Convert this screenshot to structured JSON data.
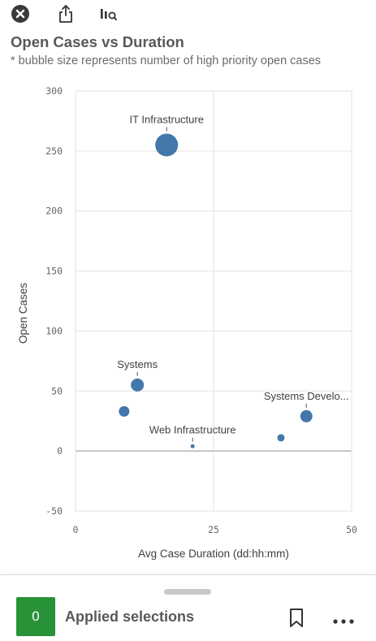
{
  "toolbar": {
    "close_icon": "close-circle-icon",
    "share_icon": "share-export-icon",
    "explore_icon": "visual-exploration-icon"
  },
  "header": {
    "title": "Open Cases vs Duration",
    "subtitle": "* bubble size represents number of high priority open cases"
  },
  "chart_data": {
    "type": "scatter",
    "title": "Open Cases vs Duration",
    "subtitle": "* bubble size represents number of high priority open cases",
    "xlabel": "Avg Case Duration (dd:hh:mm)",
    "ylabel": "Open Cases",
    "xlim": [
      0,
      50
    ],
    "ylim": [
      -50,
      300
    ],
    "x_ticks": [
      0,
      25,
      50
    ],
    "y_ticks": [
      -50,
      0,
      50,
      100,
      150,
      200,
      250,
      300
    ],
    "grid": true,
    "bubble_color": "#4477aa",
    "points": [
      {
        "label": "IT Infrastructure",
        "x": 16.5,
        "y": 255,
        "size": 14
      },
      {
        "label": "Systems",
        "x": 11.2,
        "y": 55,
        "size": 8
      },
      {
        "label": "",
        "x": 8.8,
        "y": 33,
        "size": 6.5
      },
      {
        "label": "Web Infrastructure",
        "x": 21.2,
        "y": 4,
        "size": 2.5
      },
      {
        "label": "",
        "x": 37.2,
        "y": 11,
        "size": 4.5
      },
      {
        "label": "Systems Develo...",
        "x": 41.8,
        "y": 29,
        "size": 7.5
      }
    ]
  },
  "footer": {
    "selection_count": "0",
    "selection_label": "Applied selections",
    "accent_color": "#279237",
    "bookmark_icon": "bookmark-icon",
    "more_icon": "more-horizontal-icon"
  }
}
